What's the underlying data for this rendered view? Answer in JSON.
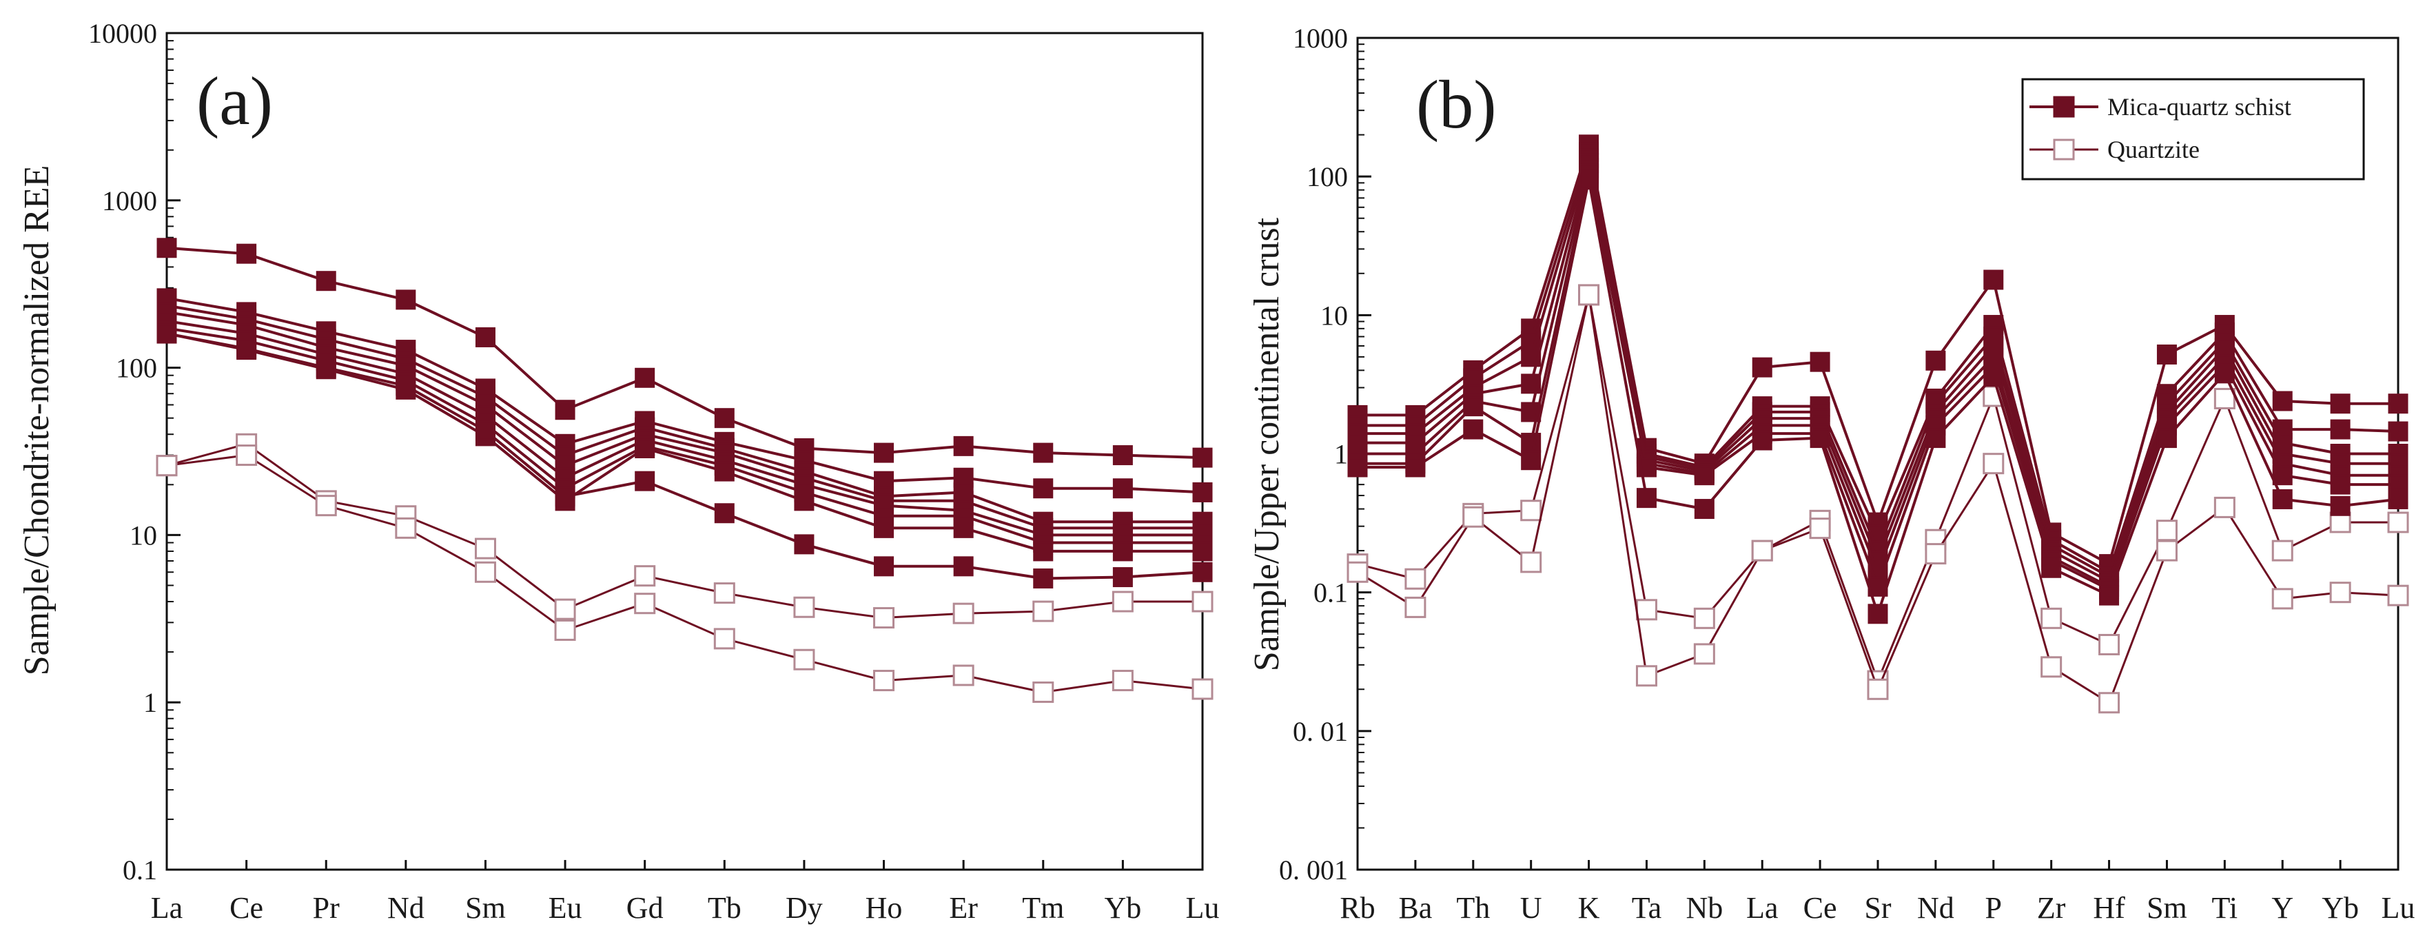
{
  "colors": {
    "series": "#6e0f22",
    "axis": "#111111",
    "background": "#ffffff",
    "open_fill": "#ffffff"
  },
  "chart_data": [
    {
      "id": "a",
      "type": "line",
      "panel_label": "(a)",
      "title": "",
      "xlabel": "",
      "ylabel": "Sample/Chondrite-normalized REE",
      "yscale": "log",
      "ylim": [
        0.1,
        10000
      ],
      "yticks": [
        "0.1",
        "1",
        "10",
        "100",
        "1000",
        "10000"
      ],
      "categories": [
        "La",
        "Ce",
        "Pr",
        "Nd",
        "Sm",
        "Eu",
        "Gd",
        "Tb",
        "Dy",
        "Ho",
        "Er",
        "Tm",
        "Yb",
        "Lu"
      ],
      "series": [
        {
          "name": "Mica-quartz schist",
          "marker": "filled",
          "values": [
            520,
            480,
            330,
            255,
            152,
            56,
            87,
            50,
            33,
            31,
            34,
            31,
            30,
            29
          ]
        },
        {
          "name": "Mica-quartz schist",
          "marker": "filled",
          "values": [
            260,
            215,
            165,
            128,
            75,
            35,
            48,
            36,
            28,
            21,
            22,
            19,
            19,
            18
          ]
        },
        {
          "name": "Mica-quartz schist",
          "marker": "filled",
          "values": [
            235,
            195,
            148,
            113,
            67,
            30,
            44,
            33,
            24,
            17,
            18,
            12,
            12,
            12
          ]
        },
        {
          "name": "Mica-quartz schist",
          "marker": "filled",
          "values": [
            215,
            180,
            132,
            103,
            60,
            26,
            40,
            31,
            22,
            16,
            16,
            11,
            11,
            11
          ]
        },
        {
          "name": "Mica-quartz schist",
          "marker": "filled",
          "values": [
            190,
            160,
            120,
            92,
            52,
            22,
            37,
            28,
            20,
            15,
            14,
            10,
            10,
            10
          ]
        },
        {
          "name": "Mica-quartz schist",
          "marker": "filled",
          "values": [
            172,
            145,
            110,
            84,
            46,
            19,
            34,
            26,
            18,
            13,
            13,
            9,
            9,
            9
          ]
        },
        {
          "name": "Mica-quartz schist",
          "marker": "filled",
          "values": [
            160,
            128,
            98,
            74,
            39,
            16,
            33,
            24,
            16,
            11,
            11,
            8,
            8,
            8
          ]
        },
        {
          "name": "Mica-quartz schist",
          "marker": "filled",
          "values": [
            160,
            130,
            100,
            78,
            42,
            17,
            21,
            13.5,
            8.8,
            6.5,
            6.5,
            5.5,
            5.6,
            6
          ]
        },
        {
          "name": "Quartzite",
          "marker": "open",
          "values": [
            26,
            35,
            16,
            13,
            8.3,
            3.6,
            5.7,
            4.5,
            3.7,
            3.2,
            3.4,
            3.5,
            4,
            4
          ]
        },
        {
          "name": "Quartzite",
          "marker": "open",
          "values": [
            26,
            30,
            15,
            11,
            6,
            2.7,
            3.9,
            2.4,
            1.8,
            1.35,
            1.45,
            1.15,
            1.35,
            1.2
          ]
        }
      ]
    },
    {
      "id": "b",
      "type": "line",
      "panel_label": "(b)",
      "title": "",
      "xlabel": "",
      "ylabel": "Sample/Upper continental crust",
      "yscale": "log",
      "ylim": [
        0.001,
        1000
      ],
      "yticks": [
        "0. 001",
        "0. 01",
        "0.1",
        "1",
        "10",
        "100",
        "1000"
      ],
      "categories": [
        "Rb",
        "Ba",
        "Th",
        "U",
        "K",
        "Ta",
        "Nb",
        "La",
        "Ce",
        "Sr",
        "Nd",
        "P",
        "Zr",
        "Hf",
        "Sm",
        "Ti",
        "Y",
        "Yb",
        "Lu"
      ],
      "legend": {
        "position": "top-right",
        "entries": [
          {
            "label": "Mica-quartz schist",
            "marker": "filled"
          },
          {
            "label": "Quartzite",
            "marker": "open"
          }
        ]
      },
      "series": [
        {
          "name": "Mica-quartz schist",
          "marker": "filled",
          "values": [
            1.9,
            1.9,
            4,
            8,
            170,
            1.1,
            0.85,
            4.2,
            4.6,
            0.32,
            4.7,
            18,
            0.27,
            0.16,
            5.2,
            8.5,
            2.4,
            2.3,
            2.3
          ]
        },
        {
          "name": "Mica-quartz schist",
          "marker": "filled",
          "values": [
            1.6,
            1.6,
            3.5,
            6.5,
            150,
            1.0,
            0.8,
            2.2,
            2.2,
            0.26,
            2.5,
            8.5,
            0.24,
            0.14,
            2.7,
            7.5,
            1.5,
            1.5,
            1.45
          ]
        },
        {
          "name": "Mica-quartz schist",
          "marker": "filled",
          "values": [
            1.4,
            1.4,
            3,
            5,
            135,
            0.95,
            0.78,
            2.0,
            2.0,
            0.2,
            2.3,
            7,
            0.22,
            0.13,
            2.3,
            6.5,
            1.2,
            1.0,
            1.0
          ]
        },
        {
          "name": "Mica-quartz schist",
          "marker": "filled",
          "values": [
            1.2,
            1.2,
            2.7,
            3.2,
            125,
            0.9,
            0.75,
            1.8,
            1.8,
            0.17,
            2.0,
            6,
            0.2,
            0.12,
            2.0,
            5.8,
            1.0,
            0.85,
            0.85
          ]
        },
        {
          "name": "Mica-quartz schist",
          "marker": "filled",
          "values": [
            1.0,
            1.0,
            2.4,
            2,
            115,
            0.85,
            0.72,
            1.6,
            1.6,
            0.14,
            1.8,
            5,
            0.18,
            0.11,
            1.8,
            5,
            0.85,
            0.7,
            0.7
          ]
        },
        {
          "name": "Mica-quartz schist",
          "marker": "filled",
          "values": [
            0.85,
            0.85,
            2.2,
            1.2,
            105,
            0.8,
            0.7,
            1.4,
            1.4,
            0.11,
            1.6,
            4.3,
            0.17,
            0.105,
            1.6,
            4.4,
            0.7,
            0.6,
            0.6
          ]
        },
        {
          "name": "Mica-quartz schist",
          "marker": "filled",
          "values": [
            0.8,
            0.8,
            1.5,
            0.9,
            95,
            0.48,
            0.4,
            1.25,
            1.3,
            0.07,
            1.3,
            3.6,
            0.15,
            0.095,
            1.3,
            3.8,
            0.47,
            0.42,
            0.47
          ]
        },
        {
          "name": "Quartzite",
          "marker": "open",
          "values": [
            0.16,
            0.125,
            0.37,
            0.39,
            14,
            0.075,
            0.065,
            0.2,
            0.33,
            0.023,
            0.24,
            2.6,
            0.065,
            0.042,
            0.28,
            2.5,
            0.2,
            0.32,
            0.32
          ]
        },
        {
          "name": "Quartzite",
          "marker": "open",
          "values": [
            0.14,
            0.078,
            0.35,
            0.165,
            14,
            0.025,
            0.036,
            0.2,
            0.29,
            0.02,
            0.19,
            0.85,
            0.029,
            0.016,
            0.2,
            0.41,
            0.09,
            0.1,
            0.095
          ]
        }
      ]
    }
  ]
}
